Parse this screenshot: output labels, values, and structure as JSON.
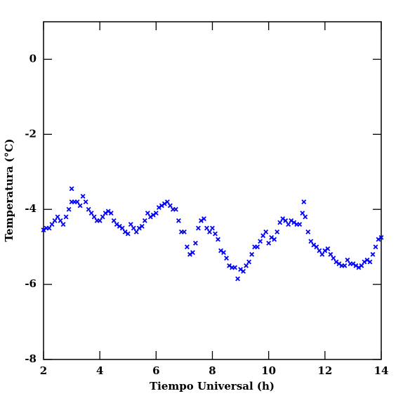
{
  "chart_data": {
    "type": "scatter",
    "x_label": "Tiempo Universal (h)",
    "y_label": "Temperatura (°C)",
    "color": "#0000ff",
    "xlim": [
      2,
      14
    ],
    "xticks": [
      2,
      4,
      6,
      8,
      10,
      12,
      14
    ],
    "ylim": [
      -8,
      1
    ],
    "yticks": [
      0,
      -2,
      -4,
      -6,
      -8
    ],
    "x": [
      2.0,
      2.1,
      2.2,
      2.3,
      2.4,
      2.5,
      2.6,
      2.7,
      2.8,
      2.9,
      3.0,
      3.0,
      3.1,
      3.2,
      3.3,
      3.4,
      3.5,
      3.6,
      3.7,
      3.8,
      3.9,
      4.0,
      4.1,
      4.2,
      4.3,
      4.4,
      4.5,
      4.6,
      4.7,
      4.8,
      4.9,
      5.0,
      5.1,
      5.2,
      5.3,
      5.4,
      5.5,
      5.6,
      5.7,
      5.8,
      5.9,
      6.0,
      6.1,
      6.2,
      6.3,
      6.4,
      6.5,
      6.6,
      6.7,
      6.8,
      6.9,
      7.0,
      7.1,
      7.2,
      7.3,
      7.4,
      7.5,
      7.6,
      7.7,
      7.8,
      7.9,
      8.0,
      8.1,
      8.2,
      8.3,
      8.4,
      8.5,
      8.6,
      8.7,
      8.8,
      8.9,
      9.0,
      9.1,
      9.2,
      9.3,
      9.4,
      9.5,
      9.6,
      9.7,
      9.8,
      9.9,
      10.0,
      10.1,
      10.2,
      10.3,
      10.4,
      10.5,
      10.6,
      10.7,
      10.8,
      10.9,
      11.0,
      11.1,
      11.2,
      11.25,
      11.3,
      11.4,
      11.5,
      11.6,
      11.7,
      11.8,
      11.9,
      12.0,
      12.1,
      12.2,
      12.3,
      12.4,
      12.5,
      12.6,
      12.7,
      12.8,
      12.9,
      13.0,
      13.1,
      13.2,
      13.3,
      13.4,
      13.5,
      13.6,
      13.7,
      13.8,
      13.9,
      14.0
    ],
    "y": [
      -4.55,
      -4.5,
      -4.5,
      -4.4,
      -4.3,
      -4.2,
      -4.3,
      -4.4,
      -4.2,
      -4.0,
      -3.8,
      -3.45,
      -3.8,
      -3.8,
      -3.9,
      -3.65,
      -3.8,
      -4.0,
      -4.1,
      -4.2,
      -4.3,
      -4.3,
      -4.2,
      -4.1,
      -4.05,
      -4.1,
      -4.3,
      -4.4,
      -4.45,
      -4.5,
      -4.6,
      -4.65,
      -4.4,
      -4.5,
      -4.6,
      -4.5,
      -4.45,
      -4.3,
      -4.1,
      -4.2,
      -4.15,
      -4.1,
      -3.95,
      -3.9,
      -3.85,
      -3.8,
      -3.9,
      -4.0,
      -4.0,
      -4.3,
      -4.6,
      -4.6,
      -5.0,
      -5.2,
      -5.15,
      -4.9,
      -4.5,
      -4.3,
      -4.25,
      -4.5,
      -4.6,
      -4.5,
      -4.65,
      -4.8,
      -5.1,
      -5.15,
      -5.3,
      -5.5,
      -5.55,
      -5.55,
      -5.85,
      -5.6,
      -5.65,
      -5.5,
      -5.4,
      -5.2,
      -5.0,
      -5.0,
      -4.85,
      -4.7,
      -4.6,
      -4.9,
      -4.75,
      -4.8,
      -4.6,
      -4.35,
      -4.25,
      -4.3,
      -4.4,
      -4.3,
      -4.35,
      -4.4,
      -4.4,
      -4.1,
      -3.8,
      -4.2,
      -4.6,
      -4.85,
      -4.95,
      -5.0,
      -5.1,
      -5.2,
      -5.1,
      -5.05,
      -5.2,
      -5.3,
      -5.4,
      -5.45,
      -5.5,
      -5.5,
      -5.35,
      -5.45,
      -5.45,
      -5.5,
      -5.55,
      -5.5,
      -5.4,
      -5.35,
      -5.4,
      -5.2,
      -5.0,
      -4.8,
      -4.75
    ]
  }
}
